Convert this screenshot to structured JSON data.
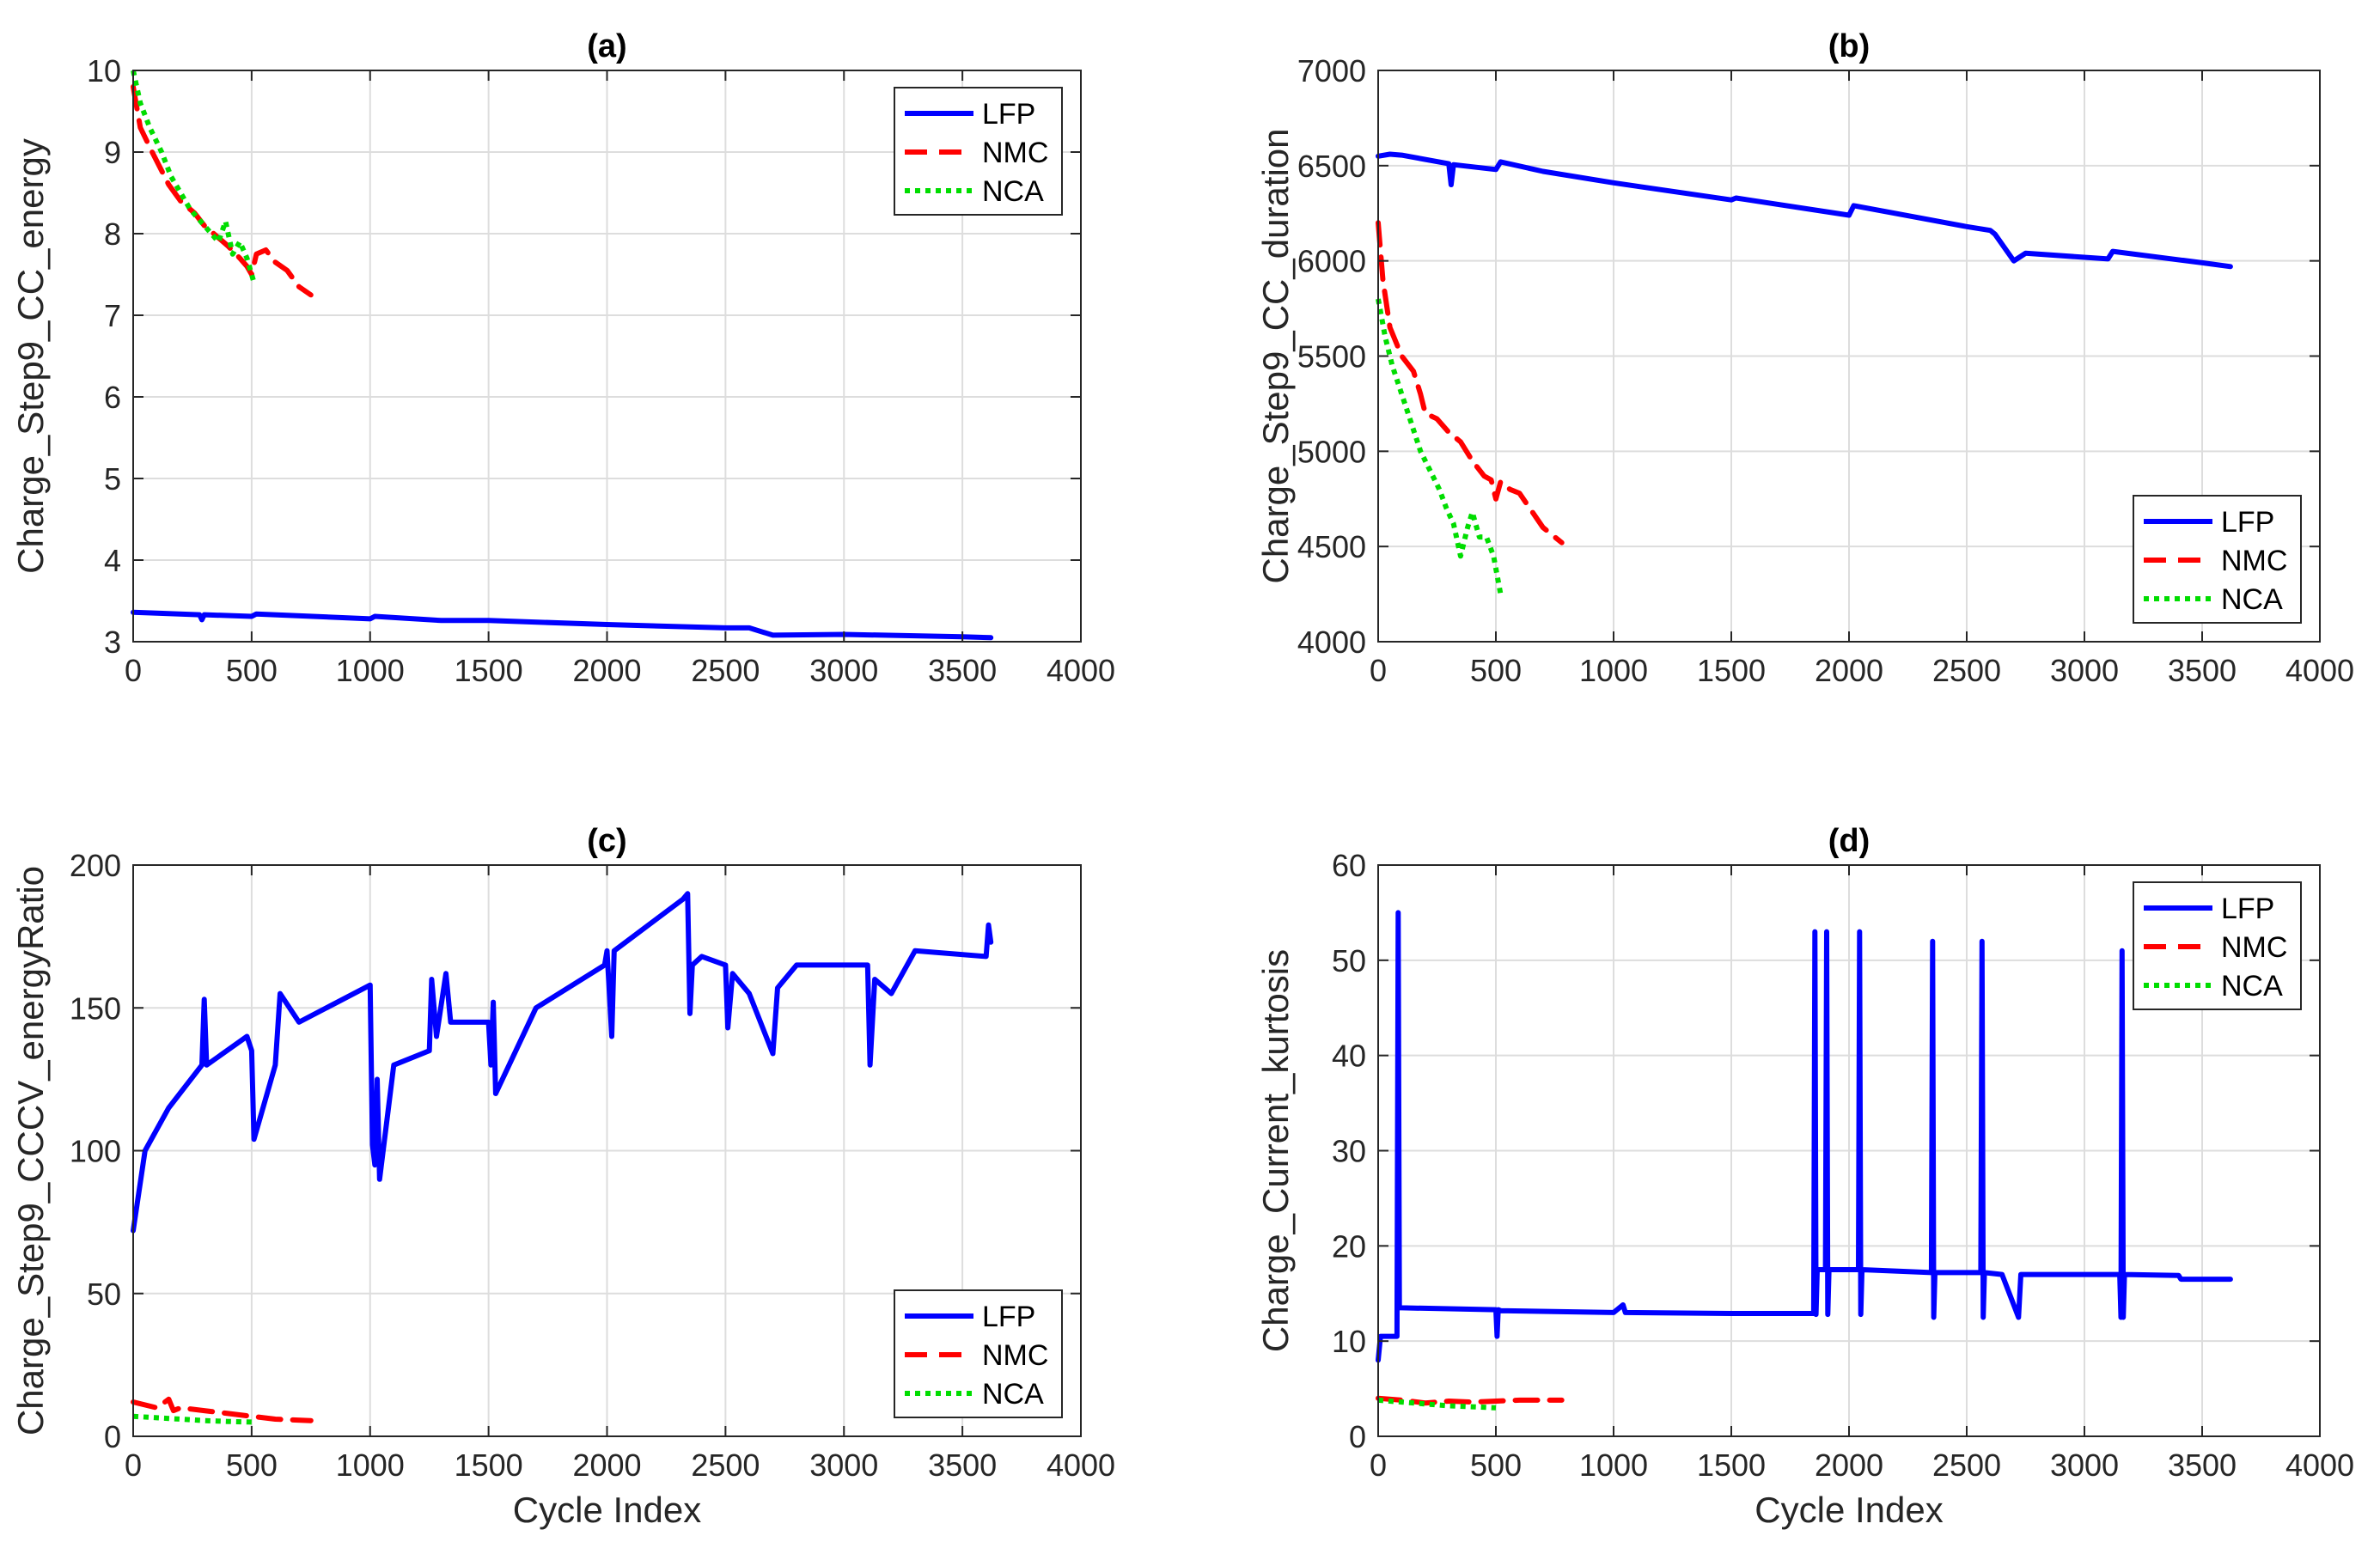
{
  "figure": {
    "x_label_shared": "Cycle Index"
  },
  "chart_data": [
    {
      "panel": "a",
      "type": "line",
      "title": "(a)",
      "xlabel": "",
      "ylabel": "Charge_Step9_CC_energy",
      "xlim": [
        0,
        4000
      ],
      "ylim": [
        3,
        10
      ],
      "xticks": [
        0,
        500,
        1000,
        1500,
        2000,
        2500,
        3000,
        3500,
        4000
      ],
      "yticks": [
        3,
        4,
        5,
        6,
        7,
        8,
        9,
        10
      ],
      "grid": true,
      "legend_position": "top-right",
      "series": [
        {
          "name": "LFP",
          "color": "#0000ff",
          "style": "solid",
          "x": [
            0,
            100,
            280,
            290,
            300,
            500,
            520,
            1000,
            1020,
            1300,
            1500,
            2000,
            2500,
            2600,
            2700,
            3000,
            3500,
            3620
          ],
          "y": [
            3.36,
            3.35,
            3.33,
            3.27,
            3.33,
            3.31,
            3.34,
            3.28,
            3.31,
            3.26,
            3.26,
            3.21,
            3.17,
            3.17,
            3.08,
            3.09,
            3.06,
            3.05
          ]
        },
        {
          "name": "NMC",
          "color": "#ff0000",
          "style": "dashed",
          "x": [
            0,
            30,
            80,
            150,
            200,
            260,
            300,
            360,
            400,
            450,
            480,
            500,
            520,
            560,
            600,
            650,
            700,
            750
          ],
          "y": [
            9.8,
            9.3,
            9.0,
            8.6,
            8.4,
            8.25,
            8.1,
            7.95,
            7.85,
            7.7,
            7.6,
            7.5,
            7.75,
            7.8,
            7.65,
            7.55,
            7.35,
            7.25
          ]
        },
        {
          "name": "NCA",
          "color": "#00dd00",
          "style": "dotted",
          "x": [
            0,
            30,
            70,
            120,
            160,
            200,
            240,
            270,
            300,
            330,
            360,
            390,
            420,
            450,
            480,
            510
          ],
          "y": [
            10.0,
            9.6,
            9.3,
            9.0,
            8.7,
            8.5,
            8.3,
            8.2,
            8.1,
            8.0,
            7.9,
            8.15,
            7.75,
            7.9,
            7.7,
            7.4
          ]
        }
      ]
    },
    {
      "panel": "b",
      "type": "line",
      "title": "(b)",
      "xlabel": "",
      "ylabel": "Charge_Step9_CC_duration",
      "xlim": [
        0,
        4000
      ],
      "ylim": [
        4000,
        7000
      ],
      "xticks": [
        0,
        500,
        1000,
        1500,
        2000,
        2500,
        3000,
        3500,
        4000
      ],
      "yticks": [
        4000,
        4500,
        5000,
        5500,
        6000,
        6500,
        7000
      ],
      "grid": true,
      "legend_position": "bottom-right",
      "series": [
        {
          "name": "LFP",
          "color": "#0000ff",
          "style": "solid",
          "x": [
            0,
            50,
            100,
            300,
            310,
            320,
            500,
            520,
            700,
            1000,
            1500,
            1520,
            2000,
            2020,
            2500,
            2600,
            2620,
            2700,
            2750,
            3100,
            3120,
            3500,
            3620
          ],
          "y": [
            6550,
            6560,
            6555,
            6510,
            6400,
            6505,
            6480,
            6520,
            6470,
            6410,
            6320,
            6330,
            6240,
            6290,
            6180,
            6160,
            6140,
            6000,
            6040,
            6010,
            6050,
            5990,
            5970
          ]
        },
        {
          "name": "NMC",
          "color": "#ff0000",
          "style": "dashed",
          "x": [
            0,
            20,
            50,
            100,
            150,
            180,
            200,
            250,
            300,
            350,
            400,
            450,
            480,
            500,
            520,
            560,
            600,
            700,
            780
          ],
          "y": [
            6200,
            5900,
            5650,
            5500,
            5420,
            5300,
            5200,
            5170,
            5100,
            5050,
            4950,
            4870,
            4850,
            4750,
            4840,
            4800,
            4780,
            4600,
            4520
          ]
        },
        {
          "name": "NCA",
          "color": "#00dd00",
          "style": "dotted",
          "x": [
            0,
            30,
            60,
            100,
            140,
            180,
            220,
            260,
            290,
            320,
            350,
            380,
            400,
            430,
            460,
            490,
            520
          ],
          "y": [
            5800,
            5600,
            5450,
            5300,
            5150,
            5000,
            4900,
            4800,
            4700,
            4620,
            4450,
            4600,
            4680,
            4550,
            4550,
            4450,
            4250
          ]
        }
      ]
    },
    {
      "panel": "c",
      "type": "line",
      "title": "(c)",
      "xlabel": "Cycle Index",
      "ylabel": "Charge_Step9_CCCV_energyRatio",
      "xlim": [
        0,
        4000
      ],
      "ylim": [
        0,
        200
      ],
      "xticks": [
        0,
        500,
        1000,
        1500,
        2000,
        2500,
        3000,
        3500,
        4000
      ],
      "yticks": [
        0,
        50,
        100,
        150,
        200
      ],
      "grid": true,
      "legend_position": "bottom-right",
      "series": [
        {
          "name": "LFP",
          "color": "#0000ff",
          "style": "solid",
          "x": [
            0,
            50,
            150,
            290,
            300,
            310,
            480,
            500,
            510,
            600,
            620,
            700,
            1000,
            1010,
            1020,
            1030,
            1040,
            1100,
            1250,
            1260,
            1280,
            1320,
            1340,
            1500,
            1510,
            1520,
            1530,
            1700,
            1990,
            2000,
            2020,
            2030,
            2320,
            2340,
            2350,
            2360,
            2400,
            2500,
            2510,
            2530,
            2600,
            2700,
            2720,
            2800,
            3100,
            3110,
            3130,
            3200,
            3300,
            3600,
            3610,
            3620
          ],
          "y": [
            72,
            100,
            115,
            130,
            153,
            130,
            140,
            135,
            104,
            130,
            155,
            145,
            158,
            102,
            95,
            125,
            90,
            130,
            135,
            160,
            140,
            162,
            145,
            145,
            130,
            152,
            120,
            150,
            165,
            170,
            140,
            170,
            188,
            190,
            148,
            165,
            168,
            165,
            143,
            162,
            155,
            134,
            157,
            165,
            165,
            130,
            160,
            155,
            170,
            168,
            179,
            173
          ]
        },
        {
          "name": "NMC",
          "color": "#ff0000",
          "style": "dashed",
          "x": [
            0,
            100,
            150,
            170,
            200,
            300,
            400,
            500,
            600,
            750
          ],
          "y": [
            12,
            10,
            13,
            9,
            10,
            9,
            8,
            7,
            6,
            5.5
          ]
        },
        {
          "name": "NCA",
          "color": "#00dd00",
          "style": "dotted",
          "x": [
            0,
            100,
            200,
            300,
            400,
            500
          ],
          "y": [
            7,
            6.5,
            6,
            5.5,
            5.2,
            5
          ]
        }
      ]
    },
    {
      "panel": "d",
      "type": "line",
      "title": "(d)",
      "xlabel": "Cycle Index",
      "ylabel": "Charge_Current_kurtosis",
      "xlim": [
        0,
        4000
      ],
      "ylim": [
        0,
        60
      ],
      "xticks": [
        0,
        500,
        1000,
        1500,
        2000,
        2500,
        3000,
        3500,
        4000
      ],
      "yticks": [
        0,
        10,
        20,
        30,
        40,
        50,
        60
      ],
      "grid": true,
      "legend_position": "top-right",
      "series": [
        {
          "name": "LFP",
          "color": "#0000ff",
          "style": "solid",
          "x": [
            0,
            10,
            80,
            85,
            90,
            95,
            100,
            500,
            505,
            510,
            520,
            1000,
            1040,
            1050,
            1500,
            1850,
            1855,
            1860,
            1865,
            1900,
            1905,
            1910,
            1915,
            2040,
            2045,
            2050,
            2055,
            2350,
            2355,
            2360,
            2365,
            2560,
            2565,
            2570,
            2575,
            2650,
            2720,
            2730,
            3150,
            3155,
            3160,
            3165,
            3170,
            3175,
            3400,
            3410,
            3620
          ],
          "y": [
            8,
            10.5,
            10.5,
            55,
            13.5,
            13.5,
            13.5,
            13.3,
            10.5,
            13.3,
            13.2,
            13.0,
            13.8,
            13.0,
            12.9,
            12.9,
            53,
            12.8,
            17.5,
            17.5,
            53,
            12.8,
            17.5,
            17.5,
            53,
            12.8,
            17.5,
            17.2,
            52,
            12.5,
            17.2,
            17.2,
            52,
            12.5,
            17.2,
            17.0,
            12.5,
            17.0,
            17.0,
            12.5,
            51,
            12.5,
            17.0,
            17.0,
            16.9,
            16.5,
            16.5
          ]
        },
        {
          "name": "NMC",
          "color": "#ff0000",
          "style": "dashed",
          "x": [
            0,
            100,
            200,
            300,
            400,
            500,
            600,
            780
          ],
          "y": [
            4.0,
            3.8,
            3.5,
            3.7,
            3.6,
            3.7,
            3.8,
            3.8
          ]
        },
        {
          "name": "NCA",
          "color": "#00dd00",
          "style": "dotted",
          "x": [
            0,
            100,
            200,
            300,
            400,
            500
          ],
          "y": [
            3.8,
            3.6,
            3.4,
            3.2,
            3.1,
            3.0
          ]
        }
      ]
    }
  ]
}
